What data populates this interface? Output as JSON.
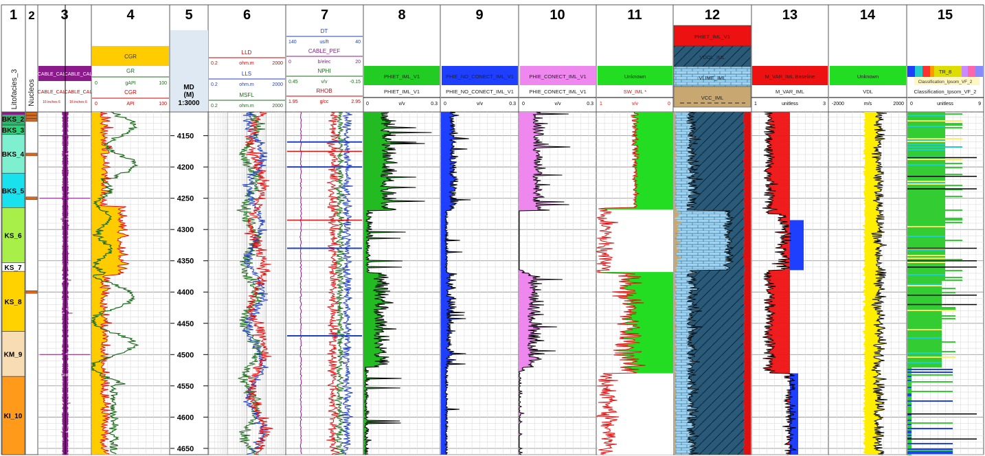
{
  "chart_data": {
    "type": "line",
    "title": "",
    "depth_track": {
      "number": "5",
      "label_1": "MD",
      "label_2": "(M)",
      "scale": "1:3000"
    },
    "depth_range": [
      4112,
      4660
    ],
    "depth_ticks": [
      4150,
      4200,
      4250,
      4300,
      4350,
      4400,
      4450,
      4500,
      4550,
      4600,
      4650
    ],
    "track_numbers": [
      "1",
      "2",
      "3",
      "4",
      "6",
      "7",
      "8",
      "9",
      "10",
      "11",
      "12",
      "13",
      "14",
      "15"
    ],
    "side_labels": {
      "litofacies": "Litofacies_3",
      "nucleos": "Nucleos"
    },
    "zones": [
      {
        "name": "BKS_2",
        "top": 4113,
        "base": 4133,
        "color": "#2fb26a"
      },
      {
        "name": "BKS_3",
        "top": 4133,
        "base": 4148,
        "color": "#2bd37a"
      },
      {
        "name": "BKS_4",
        "top": 4148,
        "base": 4210,
        "color": "#7ff0cf"
      },
      {
        "name": "BKS_5",
        "top": 4210,
        "base": 4265,
        "color": "#19e2ee"
      },
      {
        "name": "KS_6",
        "top": 4265,
        "base": 4353,
        "color": "#a8ef4a"
      },
      {
        "name": "KS_7",
        "top": 4353,
        "base": 4367,
        "color": "#ffffff"
      },
      {
        "name": "KS_8",
        "top": 4367,
        "base": 4463,
        "color": "#ffd200"
      },
      {
        "name": "KM_9",
        "top": 4463,
        "base": 4535,
        "color": "#f7dcb4"
      },
      {
        "name": "KI_10",
        "top": 4535,
        "base": 4660,
        "color": "#ff9a1a"
      }
    ],
    "tracks": [
      {
        "id": "3",
        "headers": [
          {
            "label": "CABLE_CAL",
            "color": "#ffffff",
            "fill": "#8b1a8b"
          },
          {
            "label": "CABLE_CAL",
            "color": "#8b1a8b",
            "fill": ""
          },
          {
            "label": "CABLE_CAL",
            "color": "#cc0000",
            "fill": ""
          },
          {
            "label": "CABLE_CAL",
            "color": "#cc0000",
            "fill": ""
          }
        ],
        "scale": {
          "left": "16",
          "unit": "inches",
          "right": "6"
        }
      },
      {
        "id": "4",
        "headers": [
          {
            "label": "CGR",
            "color": "#333333",
            "fill": "#ffcc00"
          },
          {
            "label": "GR",
            "color": "#1a6b1a",
            "fill": ""
          },
          {
            "label": "CGR",
            "color": "#cc0000",
            "fill": ""
          }
        ],
        "scales": [
          {
            "left": "0",
            "unit": "gAPI",
            "right": "100",
            "color": "#1a6b1a"
          },
          {
            "left": "0",
            "unit": "API",
            "right": "100",
            "color": "#cc0000"
          }
        ]
      },
      {
        "id": "6",
        "curves": [
          {
            "label": "LLD",
            "left": "0.2",
            "unit": "ohm.m",
            "right": "2000",
            "color": "#cc0000"
          },
          {
            "label": "LLS",
            "left": "0.2",
            "unit": "ohm.m",
            "right": "2000",
            "color": "#1f3fbf"
          },
          {
            "label": "MSFL",
            "left": "0.2",
            "unit": "ohm.m",
            "right": "2000",
            "color": "#1a6b1a"
          }
        ]
      },
      {
        "id": "7",
        "curves": [
          {
            "label": "DT",
            "left": "140",
            "unit": "us/ft",
            "right": "40",
            "color": "#1f3fbf"
          },
          {
            "label": "CABLE_PEF",
            "left": "0",
            "unit": "b/elec",
            "right": "20",
            "color": "#8b1a8b"
          },
          {
            "label": "NPHI",
            "left": "0.45",
            "unit": "v/v",
            "right": "-0.15",
            "color": "#1a6b1a"
          },
          {
            "label": "RHOB",
            "left": "1.95",
            "unit": "g/cc",
            "right": "2.95",
            "color": "#cc0000"
          }
        ]
      },
      {
        "id": "8",
        "banner": "PHIET_IML_V1",
        "banner_fill": "#22cc22",
        "label": "PHIET_IML_V1",
        "left": "0",
        "unit": "v/v",
        "right": "0.3",
        "fill": "#22bb22"
      },
      {
        "id": "9",
        "banner": "PHIE_NO_CONECT_IML_V1",
        "banner_fill": "#1f3fff",
        "label": "PHIE_NO_CONECT_IML_V1",
        "left": "0",
        "unit": "v/v",
        "right": "0.3",
        "fill": "#1f3fff"
      },
      {
        "id": "10",
        "banner": "PHIE_CONECT_IML_V1",
        "banner_fill": "#ee88ee",
        "label": "PHIE_CONECT_IML_V1",
        "left": "0",
        "unit": "v/v",
        "right": "0.3",
        "fill": "#ee88ee"
      },
      {
        "id": "11",
        "banner": "Unknown",
        "banner_fill": "#22dd22",
        "label": "SW_IML *",
        "left": "1",
        "unit": "v/v",
        "right": "0",
        "fill": "#22dd22",
        "color": "#dd1111"
      },
      {
        "id": "12",
        "headers": [
          {
            "label": "PHIET_IML_V1",
            "fill": "#ee1111"
          },
          {
            "label": "VDOL_IML",
            "fill": "#2a5a78"
          },
          {
            "label": "VLIME_IML",
            "fill": "#9fd3f2"
          },
          {
            "label": "VCC_IML",
            "fill": "#c8a870"
          }
        ]
      },
      {
        "id": "13",
        "banner": "M_VAR_IML Baseline",
        "banner_fill": "#ee1111",
        "label": "M_VAR_IML",
        "left": "1",
        "unit": "unitless",
        "right": "3",
        "fill": "#ee1111",
        "fill2": "#1f3fff"
      },
      {
        "id": "14",
        "banner": "Unknown",
        "banner_fill": "#22dd22",
        "label": "VDL",
        "left": "-2000",
        "unit": "m/s",
        "right": "2000",
        "fill": "#ffee00"
      },
      {
        "id": "15",
        "banner": "TR_8",
        "banner_fill": "#dddd00",
        "sub_banner": "Classification_Ipsom_VF_2",
        "label": "Classification_Ipsom_VF_2",
        "left": "0",
        "unit": "unitless",
        "right": "9",
        "fill": "#33cc33"
      }
    ]
  }
}
